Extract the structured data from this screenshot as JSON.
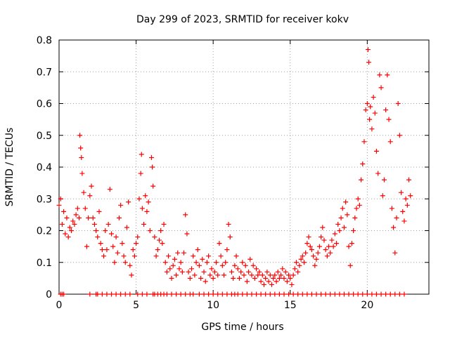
{
  "chart_data": {
    "type": "scatter",
    "title": "Day 299 of 2023, SRMTID for receiver kokv",
    "xlabel": "GPS time / hours",
    "ylabel": "SRMTID / TECUs",
    "xlim": [
      0,
      24
    ],
    "ylim": [
      0,
      0.8
    ],
    "x_ticks": [
      "0",
      "5",
      "10",
      "15",
      "20"
    ],
    "x_tick_values": [
      0,
      5,
      10,
      15,
      20
    ],
    "y_ticks": [
      "0",
      "0.1",
      "0.2",
      "0.3",
      "0.4",
      "0.5",
      "0.6",
      "0.7",
      "0.8"
    ],
    "y_tick_values": [
      0,
      0.1,
      0.2,
      0.3,
      0.4,
      0.5,
      0.6,
      0.7,
      0.8
    ],
    "grid": true,
    "marker": "+",
    "color": "#ff0000",
    "series": [
      {
        "name": "SRMTID",
        "points": [
          [
            0.0,
            0.28
          ],
          [
            0.1,
            0.3
          ],
          [
            0.2,
            0.22
          ],
          [
            0.3,
            0.26
          ],
          [
            0.4,
            0.19
          ],
          [
            0.5,
            0.24
          ],
          [
            0.6,
            0.18
          ],
          [
            0.7,
            0.21
          ],
          [
            0.8,
            0.2
          ],
          [
            0.9,
            0.23
          ],
          [
            1.0,
            0.22
          ],
          [
            1.1,
            0.25
          ],
          [
            1.2,
            0.27
          ],
          [
            1.3,
            0.24
          ],
          [
            1.35,
            0.5
          ],
          [
            1.4,
            0.46
          ],
          [
            1.45,
            0.43
          ],
          [
            1.5,
            0.38
          ],
          [
            1.6,
            0.32
          ],
          [
            1.7,
            0.27
          ],
          [
            1.8,
            0.15
          ],
          [
            1.9,
            0.24
          ],
          [
            2.0,
            0.31
          ],
          [
            2.1,
            0.34
          ],
          [
            2.2,
            0.24
          ],
          [
            2.3,
            0.22
          ],
          [
            2.4,
            0.2
          ],
          [
            2.5,
            0.18
          ],
          [
            2.6,
            0.26
          ],
          [
            2.7,
            0.16
          ],
          [
            2.8,
            0.14
          ],
          [
            2.9,
            0.12
          ],
          [
            3.0,
            0.2
          ],
          [
            3.1,
            0.14
          ],
          [
            3.2,
            0.22
          ],
          [
            3.3,
            0.33
          ],
          [
            3.4,
            0.19
          ],
          [
            3.5,
            0.15
          ],
          [
            3.6,
            0.1
          ],
          [
            3.7,
            0.18
          ],
          [
            3.8,
            0.13
          ],
          [
            3.9,
            0.24
          ],
          [
            4.0,
            0.28
          ],
          [
            4.1,
            0.16
          ],
          [
            4.2,
            0.12
          ],
          [
            4.3,
            0.1
          ],
          [
            4.4,
            0.21
          ],
          [
            4.5,
            0.29
          ],
          [
            4.6,
            0.09
          ],
          [
            4.7,
            0.06
          ],
          [
            4.8,
            0.14
          ],
          [
            4.9,
            0.12
          ],
          [
            5.0,
            0.16
          ],
          [
            5.1,
            0.18
          ],
          [
            5.2,
            0.3
          ],
          [
            5.3,
            0.38
          ],
          [
            5.35,
            0.44
          ],
          [
            5.4,
            0.27
          ],
          [
            5.5,
            0.22
          ],
          [
            5.6,
            0.31
          ],
          [
            5.7,
            0.26
          ],
          [
            5.8,
            0.29
          ],
          [
            5.9,
            0.2
          ],
          [
            6.0,
            0.43
          ],
          [
            6.05,
            0.4
          ],
          [
            6.1,
            0.34
          ],
          [
            6.2,
            0.18
          ],
          [
            6.3,
            0.12
          ],
          [
            6.4,
            0.14
          ],
          [
            6.5,
            0.17
          ],
          [
            6.6,
            0.2
          ],
          [
            6.7,
            0.16
          ],
          [
            6.8,
            0.22
          ],
          [
            6.9,
            0.1
          ],
          [
            7.0,
            0.07
          ],
          [
            7.1,
            0.12
          ],
          [
            7.2,
            0.08
          ],
          [
            7.3,
            0.05
          ],
          [
            7.4,
            0.09
          ],
          [
            7.5,
            0.11
          ],
          [
            7.6,
            0.06
          ],
          [
            7.7,
            0.13
          ],
          [
            7.8,
            0.08
          ],
          [
            7.9,
            0.1
          ],
          [
            8.0,
            0.07
          ],
          [
            8.1,
            0.13
          ],
          [
            8.2,
            0.25
          ],
          [
            8.3,
            0.19
          ],
          [
            8.4,
            0.07
          ],
          [
            8.5,
            0.05
          ],
          [
            8.6,
            0.08
          ],
          [
            8.7,
            0.12
          ],
          [
            8.8,
            0.06
          ],
          [
            8.9,
            0.1
          ],
          [
            9.0,
            0.14
          ],
          [
            9.1,
            0.09
          ],
          [
            9.2,
            0.05
          ],
          [
            9.3,
            0.11
          ],
          [
            9.4,
            0.07
          ],
          [
            9.5,
            0.04
          ],
          [
            9.6,
            0.1
          ],
          [
            9.7,
            0.12
          ],
          [
            9.8,
            0.06
          ],
          [
            9.9,
            0.08
          ],
          [
            10.0,
            0.05
          ],
          [
            10.1,
            0.07
          ],
          [
            10.2,
            0.1
          ],
          [
            10.3,
            0.06
          ],
          [
            10.4,
            0.16
          ],
          [
            10.5,
            0.12
          ],
          [
            10.6,
            0.09
          ],
          [
            10.7,
            0.06
          ],
          [
            10.8,
            0.1
          ],
          [
            10.9,
            0.14
          ],
          [
            11.0,
            0.22
          ],
          [
            11.1,
            0.18
          ],
          [
            11.2,
            0.07
          ],
          [
            11.3,
            0.05
          ],
          [
            11.4,
            0.09
          ],
          [
            11.5,
            0.12
          ],
          [
            11.6,
            0.08
          ],
          [
            11.7,
            0.05
          ],
          [
            11.8,
            0.07
          ],
          [
            11.9,
            0.1
          ],
          [
            12.0,
            0.06
          ],
          [
            12.1,
            0.09
          ],
          [
            12.2,
            0.04
          ],
          [
            12.3,
            0.07
          ],
          [
            12.4,
            0.11
          ],
          [
            12.5,
            0.06
          ],
          [
            12.6,
            0.09
          ],
          [
            12.7,
            0.05
          ],
          [
            12.8,
            0.08
          ],
          [
            12.9,
            0.06
          ],
          [
            13.0,
            0.07
          ],
          [
            13.1,
            0.04
          ],
          [
            13.2,
            0.06
          ],
          [
            13.3,
            0.03
          ],
          [
            13.4,
            0.05
          ],
          [
            13.5,
            0.07
          ],
          [
            13.6,
            0.04
          ],
          [
            13.7,
            0.06
          ],
          [
            13.8,
            0.03
          ],
          [
            13.9,
            0.05
          ],
          [
            14.0,
            0.06
          ],
          [
            14.1,
            0.04
          ],
          [
            14.2,
            0.07
          ],
          [
            14.3,
            0.05
          ],
          [
            14.4,
            0.06
          ],
          [
            14.5,
            0.08
          ],
          [
            14.6,
            0.05
          ],
          [
            14.7,
            0.07
          ],
          [
            14.8,
            0.04
          ],
          [
            14.9,
            0.06
          ],
          [
            15.0,
            0.05
          ],
          [
            15.1,
            0.03
          ],
          [
            15.2,
            0.06
          ],
          [
            15.3,
            0.08
          ],
          [
            15.4,
            0.1
          ],
          [
            15.5,
            0.07
          ],
          [
            15.6,
            0.09
          ],
          [
            15.7,
            0.11
          ],
          [
            15.8,
            0.12
          ],
          [
            15.9,
            0.1
          ],
          [
            16.0,
            0.13
          ],
          [
            16.1,
            0.16
          ],
          [
            16.2,
            0.18
          ],
          [
            16.3,
            0.15
          ],
          [
            16.4,
            0.14
          ],
          [
            16.5,
            0.12
          ],
          [
            16.6,
            0.09
          ],
          [
            16.7,
            0.11
          ],
          [
            16.8,
            0.13
          ],
          [
            16.9,
            0.15
          ],
          [
            17.0,
            0.18
          ],
          [
            17.1,
            0.21
          ],
          [
            17.2,
            0.17
          ],
          [
            17.3,
            0.14
          ],
          [
            17.4,
            0.12
          ],
          [
            17.5,
            0.15
          ],
          [
            17.6,
            0.13
          ],
          [
            17.7,
            0.17
          ],
          [
            17.8,
            0.15
          ],
          [
            17.9,
            0.19
          ],
          [
            18.0,
            0.16
          ],
          [
            18.1,
            0.22
          ],
          [
            18.2,
            0.2
          ],
          [
            18.3,
            0.24
          ],
          [
            18.4,
            0.27
          ],
          [
            18.5,
            0.21
          ],
          [
            18.6,
            0.29
          ],
          [
            18.7,
            0.25
          ],
          [
            18.8,
            0.15
          ],
          [
            18.9,
            0.09
          ],
          [
            19.0,
            0.16
          ],
          [
            19.1,
            0.2
          ],
          [
            19.2,
            0.24
          ],
          [
            19.3,
            0.27
          ],
          [
            19.4,
            0.3
          ],
          [
            19.5,
            0.28
          ],
          [
            19.6,
            0.36
          ],
          [
            19.7,
            0.41
          ],
          [
            19.8,
            0.48
          ],
          [
            19.9,
            0.58
          ],
          [
            20.0,
            0.6
          ],
          [
            20.05,
            0.77
          ],
          [
            20.1,
            0.73
          ],
          [
            20.15,
            0.55
          ],
          [
            20.2,
            0.59
          ],
          [
            20.3,
            0.52
          ],
          [
            20.4,
            0.62
          ],
          [
            20.5,
            0.57
          ],
          [
            20.6,
            0.45
          ],
          [
            20.7,
            0.38
          ],
          [
            20.8,
            0.69
          ],
          [
            20.9,
            0.65
          ],
          [
            21.0,
            0.31
          ],
          [
            21.1,
            0.36
          ],
          [
            21.2,
            0.58
          ],
          [
            21.3,
            0.69
          ],
          [
            21.4,
            0.55
          ],
          [
            21.5,
            0.48
          ],
          [
            21.6,
            0.27
          ],
          [
            21.7,
            0.21
          ],
          [
            21.8,
            0.13
          ],
          [
            21.9,
            0.24
          ],
          [
            22.0,
            0.6
          ],
          [
            22.1,
            0.5
          ],
          [
            22.2,
            0.32
          ],
          [
            22.3,
            0.26
          ],
          [
            22.4,
            0.23
          ],
          [
            22.5,
            0.3
          ],
          [
            22.6,
            0.28
          ],
          [
            22.7,
            0.36
          ],
          [
            22.8,
            0.31
          ]
        ]
      },
      {
        "name": "zero-values",
        "x": [
          0.1,
          0.2,
          0.3,
          2.0,
          2.4,
          2.5,
          2.8,
          3.1,
          3.4,
          3.7,
          4.0,
          4.3,
          4.6,
          5.1,
          5.4,
          5.7,
          6.1,
          6.2,
          6.4,
          6.6,
          6.8,
          7.0,
          7.3,
          7.6,
          7.9,
          8.2,
          8.5,
          8.7,
          9.1,
          9.4,
          9.7,
          10.0,
          10.3,
          10.6,
          10.9,
          11.2,
          11.4,
          11.6,
          11.9,
          12.2,
          12.5,
          12.8,
          13.1,
          13.4,
          13.7,
          14.0,
          14.3,
          14.6,
          14.9,
          15.2,
          15.5,
          15.8,
          16.1,
          16.4,
          16.7,
          17.0,
          17.3,
          17.6,
          17.9,
          18.2,
          18.5,
          18.8,
          19.1,
          19.4,
          19.7,
          20.0,
          20.3,
          20.6,
          20.9,
          21.2,
          21.5,
          21.8,
          22.1,
          22.4
        ]
      }
    ]
  }
}
